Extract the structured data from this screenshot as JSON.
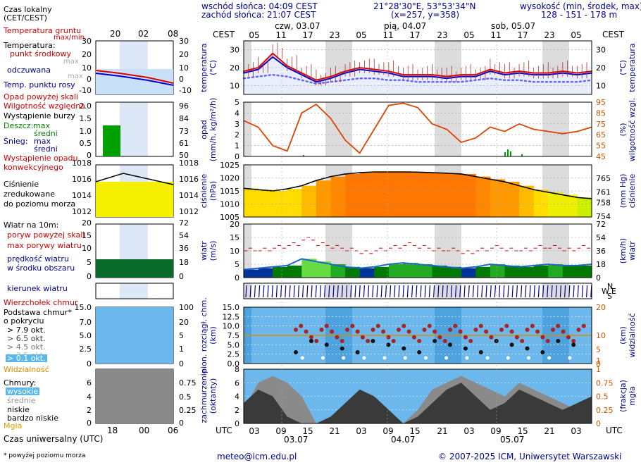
{
  "header": {
    "sunrise": "wschód słońca: 04:09 CEST",
    "sunset": "zachód słońca: 21:07 CEST",
    "coords": "21°28'30\"E, 53°53'34\"N",
    "grid": "(x=257, y=358)",
    "alt_label": "wysokość (min, środek, max)",
    "alt_values": "128 - 151 - 178 m",
    "tz_top": "CEST",
    "tz_bottom": "UTC",
    "days_top": [
      "czw, 03.07",
      "pią, 04.07",
      "sob, 05.07"
    ],
    "days_bottom": [
      "03.07",
      "04.07",
      "05.07"
    ],
    "hours_top": [
      "05",
      "11",
      "17",
      "23",
      "05",
      "11",
      "17",
      "23",
      "05",
      "11",
      "17",
      "23",
      "05"
    ],
    "hours_bottom": [
      "03",
      "09",
      "15",
      "21",
      "03",
      "09",
      "15",
      "21",
      "03",
      "09",
      "15",
      "21",
      "03"
    ]
  },
  "legend": {
    "local_time": "Czas lokalny",
    "local_time2": "(CET/CEST)",
    "local_hours": [
      "20",
      "02",
      "08"
    ],
    "utc_hours": [
      "18",
      "00",
      "06"
    ],
    "utc_label": "Czas uniwersalny (UTC)",
    "ground_temp": "Temperatura gruntu",
    "ground_temp2": "max/min",
    "temperature": "Temperatura:",
    "mid_point": "punkt środkowy",
    "max": "max",
    "min": "min",
    "felt": "odczuwana",
    "felt_max": "max",
    "felt_min": "min",
    "dew": "Temp. punktu rosy",
    "precip_above": "Opad powyżej skali",
    "humidity": "Wilgotność względna",
    "storm": "Wystąpienie burzy",
    "rain": "Deszcz:",
    "rain_max": "max",
    "rain_mid": "średni",
    "snow": "Śnieg:",
    "snow_max": "max",
    "snow_mid": "średni",
    "conv": "Wystąpienie opadu",
    "conv2": "konwekcyjnego",
    "pressure": "Ciśnienie",
    "pressure2": "zredukowane",
    "pressure3": "do poziomu morza",
    "wind_title": "Wiatr na 10m:",
    "gust_above": "poryw powyżej skali",
    "gust_max": "max porywy wiatru",
    "wind_speed": "prędkość wiatru",
    "wind_speed2": "w środku obszaru",
    "wind_dir": "kierunek wiatru",
    "cloud_top": "Wierzchołek chmur",
    "cloud_base": "Podstawa chmur*",
    "cloud_base2": "o pokryciu",
    "okt": [
      "> 7.9 okt.",
      "> 6.5 okt.",
      "> 4.5 okt.",
      "> 2.5 okt.",
      "> 0.1 okt."
    ],
    "visibility": "Widzialność",
    "clouds": "Chmury:",
    "cl_high": "wysokie",
    "cl_mid": "średnie",
    "cl_low": "niskie",
    "cl_vlow": "bardzo niskie",
    "fog": "Mgła",
    "footnote": "* powyżej poziomu morza"
  },
  "axes": {
    "temp_left": "temperatura",
    "temp_left_u": "(°C)",
    "temp_right": "temperatura",
    "temp_right_u": "(°C)",
    "precip_left": "opad",
    "precip_left_u": "(mm/h, kg/m²/h)",
    "hum_right": "wilgotność wzgl.",
    "hum_right_u": "(%)",
    "press_left": "ciśnienie",
    "press_left_u": "(hPa)",
    "press_right": "ciśnienie",
    "press_right_u": "(mm Hg)",
    "wind_left": "wiatr",
    "wind_left_u": "(m/s)",
    "wind_right": "wiatr",
    "wind_right_u": "(km/h)",
    "cloud_left": "pion. rozciągł. chm.",
    "cloud_left_u": "(km)",
    "vis_right": "widzialność",
    "vis_right_u": "(km)",
    "cov_left": "zachmurzenie",
    "cov_left_u": "(oktanty)",
    "fog_right": "mgła",
    "fog_right_u": "(frakcja)"
  },
  "footer": {
    "email": "meteo@icm.edu.pl",
    "copyright": "© 2007-2025 ICM, Uniwersytet Warszawski"
  },
  "chart_data": [
    {
      "type": "line",
      "title": "temperatura",
      "ylabel": "(°C)",
      "ylim": [
        5,
        35
      ],
      "yticks": [
        10,
        20,
        30
      ],
      "x_hours_utc": [
        0,
        6,
        12,
        18,
        24,
        30,
        36,
        42,
        48,
        54,
        60,
        66,
        72
      ],
      "series": [
        {
          "name": "punkt środkowy",
          "color": "#dd0000",
          "values": [
            18,
            20,
            28,
            21,
            17,
            13,
            15,
            18,
            20,
            19,
            18,
            16,
            16,
            16,
            15,
            16,
            16,
            19,
            17,
            18,
            17,
            17,
            18,
            17,
            18
          ]
        },
        {
          "name": "odczuwana",
          "color": "#0000cc",
          "values": [
            17,
            19,
            26,
            20,
            16,
            12,
            14,
            17,
            19,
            18,
            17,
            15,
            15,
            15,
            14,
            15,
            15,
            18,
            16,
            17,
            16,
            16,
            17,
            16,
            17
          ]
        },
        {
          "name": "Temp. punktu rosy",
          "color": "#6666ff",
          "values": [
            14,
            15,
            16,
            15,
            13,
            11,
            12,
            13,
            14,
            14,
            13,
            13,
            12,
            12,
            12,
            12,
            13,
            14,
            13,
            13,
            12,
            12,
            12,
            12,
            13
          ]
        }
      ]
    },
    {
      "type": "line",
      "title": "opad / wilgotność",
      "ylim": [
        0,
        5
      ],
      "yticks": [
        0,
        1,
        2,
        3,
        4,
        5
      ],
      "y2ticks": [
        45,
        55,
        65,
        75,
        85,
        95
      ],
      "series": [
        {
          "name": "Wilgotność względna",
          "color": "#dd4400",
          "values": [
            78,
            72,
            55,
            50,
            85,
            93,
            80,
            60,
            48,
            70,
            92,
            94,
            90,
            75,
            70,
            58,
            62,
            72,
            68,
            75,
            70,
            68,
            66,
            68,
            72
          ]
        }
      ]
    },
    {
      "type": "area",
      "title": "ciśnienie",
      "ylabel": "(hPa)",
      "ylim": [
        1005,
        1025
      ],
      "yticks": [
        1005,
        1010,
        1015,
        1020,
        1025
      ],
      "y2ticks": [
        754,
        758,
        761,
        765
      ],
      "series": [
        {
          "name": "ciśnienie",
          "color": "#000000",
          "values": [
            1016,
            1015.5,
            1015,
            1015.8,
            1017,
            1019,
            1020.5,
            1021.5,
            1022,
            1022.3,
            1022.3,
            1022.3,
            1022.2,
            1022,
            1021.8,
            1021.5,
            1020.5,
            1019.5,
            1018.5,
            1017,
            1015.5,
            1014.5,
            1013.5,
            1012.5,
            1012
          ]
        }
      ]
    },
    {
      "type": "area",
      "title": "wiatr",
      "ylabel": "(m/s)",
      "ylim": [
        0,
        20
      ],
      "yticks": [
        0,
        5,
        10,
        15,
        20
      ],
      "y2ticks": [
        0,
        18,
        36,
        54,
        72
      ],
      "series": [
        {
          "name": "prędkość wiatru",
          "color": "#1a66cc",
          "values": [
            3,
            3.5,
            4,
            4.5,
            7,
            6,
            5,
            4,
            3.5,
            4,
            5,
            5.5,
            5,
            4.5,
            4,
            3.5,
            4,
            5,
            4.5,
            4,
            4.5,
            5,
            4.5,
            4.5,
            5
          ]
        },
        {
          "name": "max porywy wiatru",
          "color": "#cc0000",
          "values": [
            10,
            10,
            11,
            12,
            14,
            12,
            11,
            10,
            9,
            10,
            11,
            12,
            11,
            10,
            10,
            9,
            10,
            11,
            10,
            10,
            11,
            11,
            10,
            11,
            12
          ]
        }
      ]
    },
    {
      "type": "scatter",
      "title": "pion. rozciągł. chm.",
      "ylabel": "(km)",
      "ylim": [
        0,
        15
      ],
      "yticks": [
        0.0,
        2.5,
        5.0,
        7.5,
        10.0,
        12.5,
        15.0
      ],
      "y2ticks": [
        0,
        1,
        5,
        10,
        20
      ]
    },
    {
      "type": "area",
      "title": "zachmurzenie",
      "ylabel": "(oktanty)",
      "ylim": [
        0,
        8
      ],
      "yticks": [
        0,
        2,
        4,
        6,
        8
      ],
      "y2ticks": [
        0,
        0.25,
        0.5,
        0.75,
        1
      ]
    }
  ]
}
